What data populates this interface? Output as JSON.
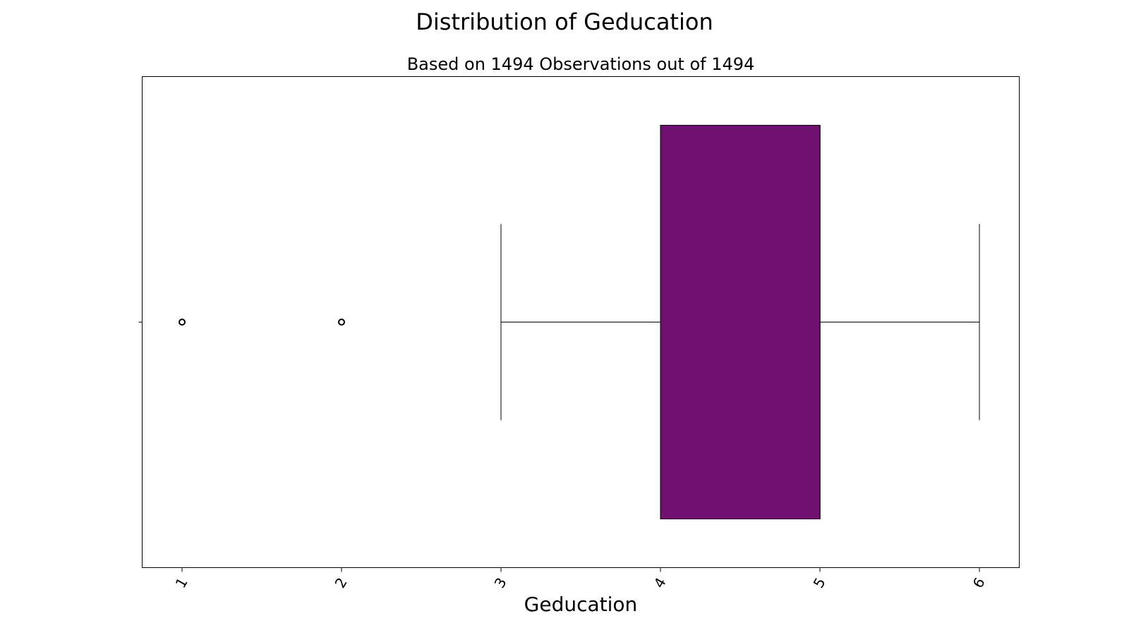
{
  "figure": {
    "title": "Distribution of Geducation"
  },
  "chart_data": {
    "type": "box",
    "title": "Based on 1494 Observations out of 1494",
    "xlabel": "Geducation",
    "ylabel": "",
    "xlim": [
      0.75,
      6.25
    ],
    "xticks": [
      1,
      2,
      3,
      4,
      5,
      6
    ],
    "xtick_labels": [
      "1",
      "2",
      "3",
      "4",
      "5",
      "6"
    ],
    "xtick_rotation_deg": 60,
    "orientation": "horizontal",
    "grid": false,
    "box": {
      "whisker_low": 3,
      "q1": 4,
      "median": 5,
      "q3": 5,
      "whisker_high": 6,
      "outliers": [
        1,
        2
      ]
    },
    "box_color": "#701070",
    "edge_color": "#000000"
  }
}
